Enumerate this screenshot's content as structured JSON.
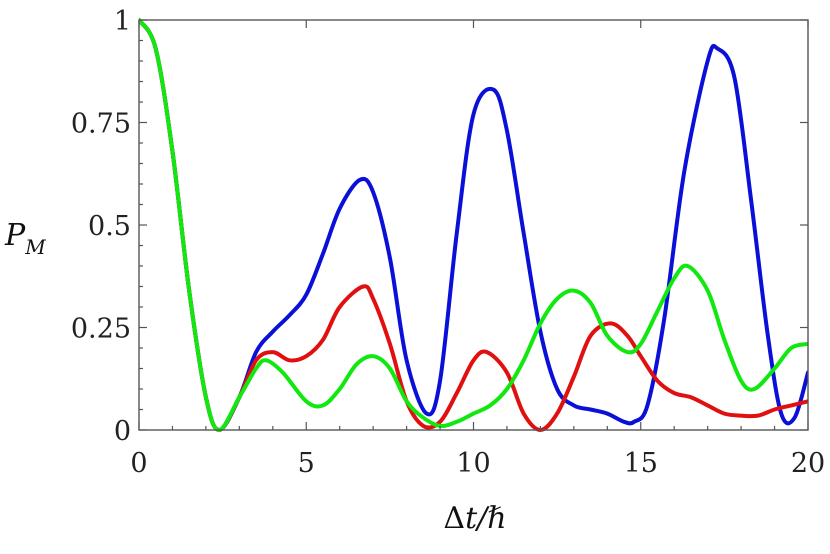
{
  "chart_data": {
    "type": "line",
    "title": "",
    "xlabel": "Δt/ℏ",
    "ylabel": "P_M",
    "ylabel_parts": {
      "main": "P",
      "sub": "M"
    },
    "xlim": [
      0,
      20
    ],
    "ylim": [
      0,
      1
    ],
    "x_ticks": [
      0,
      5,
      10,
      15,
      20
    ],
    "x_tick_labels": [
      "0",
      "5",
      "10",
      "15",
      "20"
    ],
    "y_ticks": [
      0,
      0.25,
      0.5,
      0.75,
      1
    ],
    "y_tick_labels": [
      "0",
      "0.25",
      "0.5",
      "0.75",
      "1"
    ],
    "grid": false,
    "legend": "none",
    "series": [
      {
        "color": "#0a10d8",
        "x": [
          0,
          0.5,
          1,
          1.5,
          2,
          2.4,
          3,
          3.5,
          4,
          4.5,
          5,
          5.5,
          6,
          6.6,
          7,
          7.5,
          8,
          8.6,
          9,
          9.5,
          10,
          10.6,
          11,
          11.5,
          12,
          12.5,
          13,
          13.5,
          14,
          14.5,
          14.8,
          15.2,
          15.7,
          16.3,
          17,
          17.3,
          17.8,
          18.3,
          18.8,
          19.2,
          19.6,
          20
        ],
        "y": [
          1,
          0.93,
          0.68,
          0.34,
          0.08,
          0.0,
          0.08,
          0.19,
          0.24,
          0.28,
          0.33,
          0.43,
          0.54,
          0.61,
          0.58,
          0.42,
          0.17,
          0.04,
          0.12,
          0.48,
          0.77,
          0.83,
          0.73,
          0.48,
          0.24,
          0.1,
          0.06,
          0.05,
          0.04,
          0.02,
          0.02,
          0.06,
          0.27,
          0.63,
          0.9,
          0.93,
          0.86,
          0.56,
          0.23,
          0.04,
          0.03,
          0.14
        ]
      },
      {
        "color": "#e01010",
        "x": [
          0,
          0.5,
          1,
          1.5,
          2,
          2.4,
          3,
          3.5,
          4,
          4.5,
          5,
          5.5,
          6,
          6.7,
          7,
          7.5,
          8,
          8.5,
          9,
          9.5,
          10,
          10.4,
          11,
          11.5,
          12,
          12.5,
          13,
          13.5,
          14.1,
          14.6,
          15,
          15.5,
          16,
          16.5,
          17,
          17.5,
          18,
          18.5,
          19,
          19.5,
          20
        ],
        "y": [
          1,
          0.93,
          0.68,
          0.34,
          0.08,
          0.0,
          0.08,
          0.17,
          0.19,
          0.17,
          0.18,
          0.22,
          0.3,
          0.35,
          0.32,
          0.21,
          0.07,
          0.01,
          0.02,
          0.09,
          0.17,
          0.19,
          0.14,
          0.04,
          0.0,
          0.04,
          0.13,
          0.23,
          0.26,
          0.23,
          0.18,
          0.12,
          0.09,
          0.08,
          0.06,
          0.04,
          0.035,
          0.035,
          0.05,
          0.06,
          0.07
        ]
      },
      {
        "color": "#10e810",
        "x": [
          0,
          0.5,
          1,
          1.5,
          2,
          2.4,
          3,
          3.5,
          3.8,
          4.3,
          5,
          5.5,
          6,
          6.5,
          7,
          7.5,
          8,
          8.5,
          9,
          9.5,
          10,
          10.5,
          11,
          11.5,
          12,
          12.5,
          13,
          13.5,
          14,
          14.6,
          15,
          15.5,
          16,
          16.4,
          17,
          17.5,
          18,
          18.4,
          19,
          19.5,
          20
        ],
        "y": [
          1,
          0.93,
          0.68,
          0.34,
          0.08,
          0.0,
          0.08,
          0.15,
          0.17,
          0.14,
          0.07,
          0.06,
          0.1,
          0.16,
          0.18,
          0.15,
          0.07,
          0.03,
          0.01,
          0.02,
          0.04,
          0.06,
          0.1,
          0.17,
          0.26,
          0.32,
          0.34,
          0.31,
          0.23,
          0.19,
          0.21,
          0.29,
          0.37,
          0.4,
          0.34,
          0.22,
          0.12,
          0.1,
          0.15,
          0.2,
          0.21
        ]
      }
    ]
  }
}
